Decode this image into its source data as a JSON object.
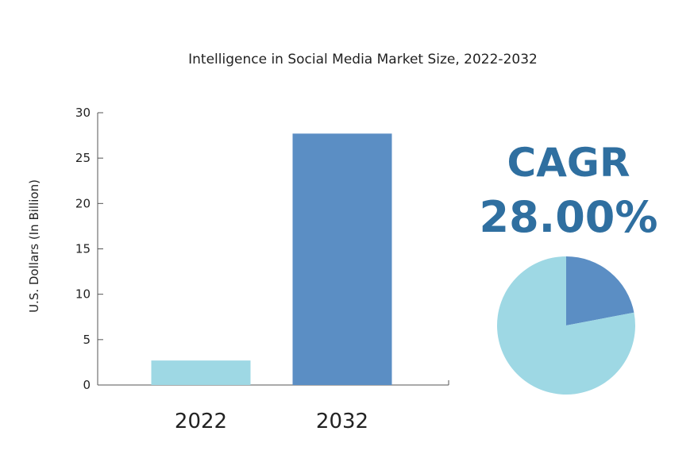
{
  "chart_data": {
    "type": "bar",
    "title": "Intelligence in Social Media Market Size, 2022-2032",
    "xlabel": "",
    "ylabel": "U.S. Dollars (In Billion)",
    "categories": [
      "2022",
      "2032"
    ],
    "values": [
      2.7,
      27.7
    ],
    "ylim": [
      0,
      30
    ],
    "yticks": [
      0,
      5,
      10,
      15,
      20,
      25,
      30
    ],
    "bar_colors": [
      "#9ed8e4",
      "#5b8ec4"
    ],
    "grid": false
  },
  "cagr": {
    "label": "CAGR",
    "value": "28.00%",
    "pie_slices": [
      {
        "value": 0.22,
        "color": "#5b8ec4"
      },
      {
        "value": 0.78,
        "color": "#9ed8e4"
      }
    ]
  },
  "colors": {
    "text": "#222222",
    "axis": "#555555",
    "accent": "#2f6fa0"
  }
}
